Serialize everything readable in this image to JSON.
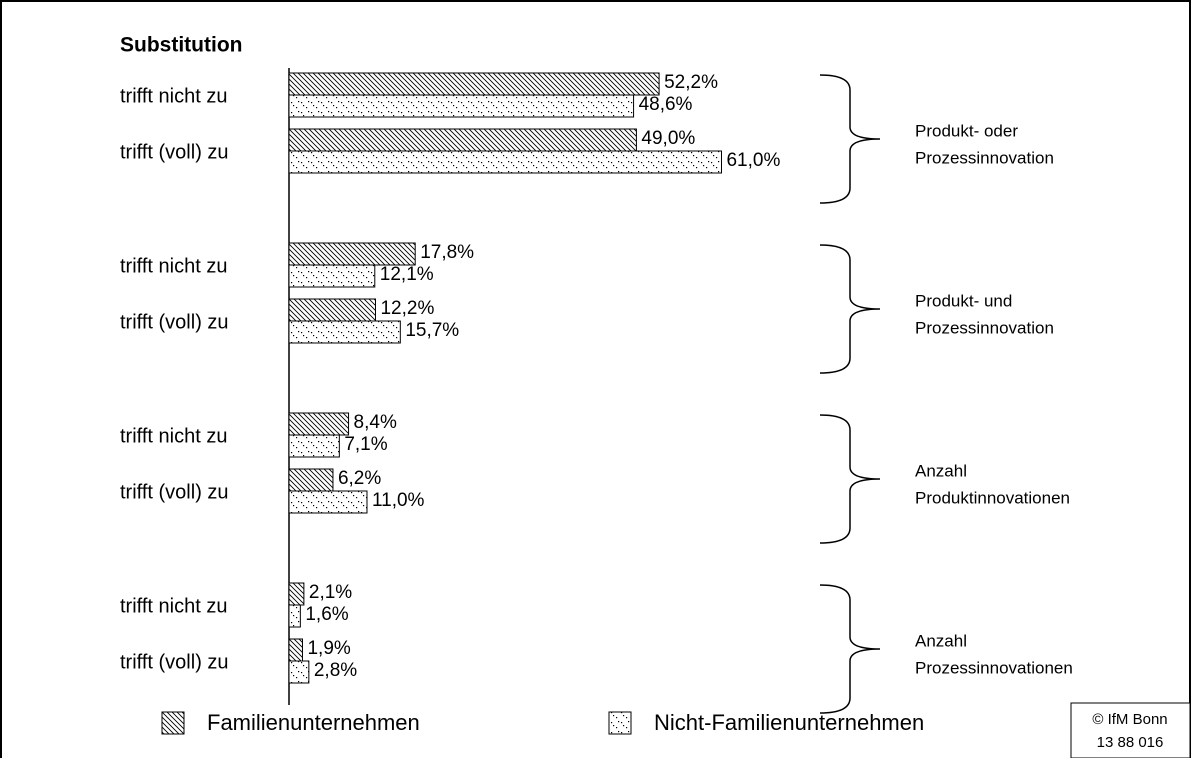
{
  "chart_data": {
    "type": "bar",
    "orientation": "horizontal",
    "title": "Substitution",
    "categories": [
      "trifft nicht zu",
      "trifft (voll) zu",
      "trifft nicht zu",
      "trifft (voll) zu",
      "trifft nicht zu",
      "trifft (voll) zu",
      "trifft nicht zu",
      "trifft (voll) zu"
    ],
    "groups": [
      {
        "label": [
          "Produkt- oder",
          "Prozessinnovation"
        ]
      },
      {
        "label": [
          "Produkt- und",
          "Prozessinnovation"
        ]
      },
      {
        "label": [
          "Anzahl",
          "Produktinnovationen"
        ]
      },
      {
        "label": [
          "Anzahl",
          "Prozessinnovationen"
        ]
      }
    ],
    "series": [
      {
        "name": "Familienunternehmen",
        "pattern": "hatch",
        "values": [
          52.2,
          49.0,
          17.8,
          12.2,
          8.4,
          6.2,
          2.1,
          1.9
        ],
        "value_labels": [
          "52,2%",
          "49,0%",
          "17,8%",
          "12,2%",
          "8,4%",
          "6,2%",
          "2,1%",
          "1,9%"
        ]
      },
      {
        "name": "Nicht-Familienunternehmen",
        "pattern": "dots",
        "values": [
          48.6,
          61.0,
          12.1,
          15.7,
          7.1,
          11.0,
          1.6,
          2.8
        ],
        "value_labels": [
          "48,6%",
          "61,0%",
          "12,1%",
          "15,7%",
          "7,1%",
          "11,0%",
          "1,6%",
          "2,8%"
        ]
      }
    ],
    "source": [
      "© IfM Bonn",
      "13 88 016"
    ]
  }
}
